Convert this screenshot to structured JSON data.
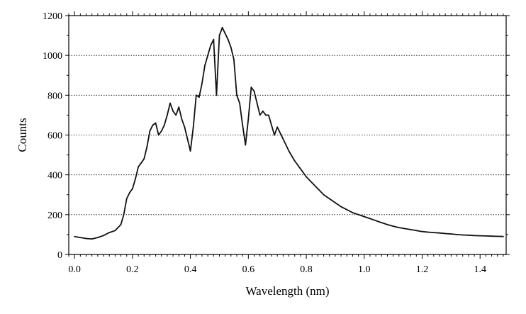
{
  "chart_data": {
    "type": "line",
    "title": "",
    "xlabel": "Wavelength (nm)",
    "ylabel": "Counts",
    "xlim": [
      -0.02,
      1.49
    ],
    "ylim": [
      0,
      1200
    ],
    "grid": true,
    "x_ticks": [
      0.0,
      0.2,
      0.4,
      0.6,
      0.8,
      1.0,
      1.2,
      1.4
    ],
    "x_tick_labels": [
      "0.0",
      "0.2",
      "0.4",
      "0.6",
      "0.8",
      "1.0",
      "1.2",
      "1.4"
    ],
    "y_ticks": [
      0,
      200,
      400,
      600,
      800,
      1000,
      1200
    ],
    "y_tick_labels": [
      "0",
      "200",
      "400",
      "600",
      "800",
      "1000",
      "1200"
    ],
    "series": [
      {
        "name": "",
        "x": [
          0.0,
          0.02,
          0.04,
          0.06,
          0.08,
          0.1,
          0.12,
          0.14,
          0.16,
          0.17,
          0.18,
          0.19,
          0.2,
          0.21,
          0.22,
          0.23,
          0.24,
          0.25,
          0.26,
          0.27,
          0.28,
          0.29,
          0.3,
          0.31,
          0.32,
          0.33,
          0.34,
          0.35,
          0.36,
          0.37,
          0.38,
          0.39,
          0.4,
          0.41,
          0.42,
          0.43,
          0.44,
          0.45,
          0.46,
          0.47,
          0.48,
          0.49,
          0.5,
          0.51,
          0.52,
          0.53,
          0.54,
          0.55,
          0.56,
          0.57,
          0.58,
          0.59,
          0.6,
          0.61,
          0.62,
          0.63,
          0.64,
          0.65,
          0.66,
          0.67,
          0.68,
          0.69,
          0.7,
          0.72,
          0.74,
          0.76,
          0.78,
          0.8,
          0.82,
          0.84,
          0.86,
          0.88,
          0.9,
          0.92,
          0.94,
          0.96,
          0.98,
          1.0,
          1.02,
          1.04,
          1.06,
          1.08,
          1.1,
          1.12,
          1.14,
          1.16,
          1.18,
          1.2,
          1.22,
          1.24,
          1.26,
          1.28,
          1.3,
          1.32,
          1.34,
          1.36,
          1.38,
          1.4,
          1.42,
          1.44,
          1.46,
          1.48
        ],
        "values": [
          90,
          85,
          80,
          78,
          85,
          95,
          110,
          120,
          150,
          200,
          280,
          310,
          330,
          380,
          440,
          460,
          480,
          540,
          620,
          650,
          660,
          600,
          620,
          650,
          700,
          760,
          720,
          700,
          740,
          680,
          640,
          580,
          520,
          640,
          800,
          790,
          860,
          950,
          1000,
          1050,
          1080,
          800,
          1100,
          1140,
          1110,
          1080,
          1040,
          980,
          800,
          760,
          650,
          550,
          680,
          840,
          820,
          760,
          700,
          720,
          700,
          700,
          650,
          600,
          640,
          580,
          520,
          470,
          430,
          390,
          360,
          330,
          300,
          280,
          260,
          240,
          225,
          210,
          200,
          190,
          180,
          170,
          160,
          150,
          142,
          135,
          130,
          125,
          120,
          115,
          112,
          110,
          108,
          105,
          103,
          100,
          98,
          97,
          95,
          94,
          93,
          92,
          91,
          90
        ]
      }
    ]
  }
}
